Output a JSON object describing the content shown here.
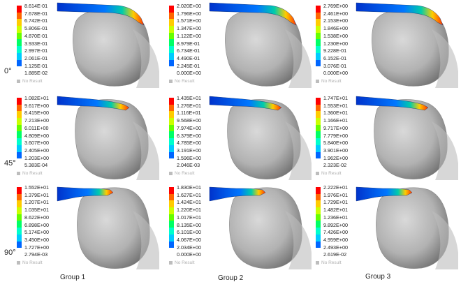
{
  "row_labels": [
    "0°",
    "45°",
    "90°"
  ],
  "group_labels": [
    "Group 1",
    "Group 2",
    "Group 3"
  ],
  "no_result_label": "No Result",
  "legend_colors": [
    "#ff0000",
    "#ff6600",
    "#ffcc00",
    "#ccff00",
    "#66ff00",
    "#00ff66",
    "#00ffcc",
    "#00ccff",
    "#0066ff",
    "#0000ff",
    "#0000aa"
  ],
  "panels": [
    {
      "row": 0,
      "group": 0,
      "values": [
        "8.614E-01",
        "7.678E-01",
        "6.742E-01",
        "5.806E-01",
        "4.870E-01",
        "3.933E-01",
        "2.997E-01",
        "2.061E-01",
        "1.125E-01",
        "1.885E-02"
      ]
    },
    {
      "row": 0,
      "group": 1,
      "values": [
        "2.020E+00",
        "1.796E+00",
        "1.571E+00",
        "1.347E+00",
        "1.122E+00",
        "8.979E-01",
        "6.734E-01",
        "4.490E-01",
        "2.245E-01",
        "0.000E+00"
      ]
    },
    {
      "row": 0,
      "group": 2,
      "values": [
        "2.769E+00",
        "2.461E+00",
        "2.153E+00",
        "1.846E+00",
        "1.538E+00",
        "1.230E+00",
        "9.228E-01",
        "6.152E-01",
        "3.076E-01",
        "0.000E+00"
      ]
    },
    {
      "row": 1,
      "group": 0,
      "values": [
        "1.082E+01",
        "9.617E+00",
        "8.415E+00",
        "7.213E+00",
        "6.011E+00",
        "4.809E+00",
        "3.607E+00",
        "2.405E+00",
        "1.203E+00",
        "5.383E-04"
      ]
    },
    {
      "row": 1,
      "group": 1,
      "values": [
        "1.435E+01",
        "1.276E+01",
        "1.116E+01",
        "9.568E+00",
        "7.974E+00",
        "6.379E+00",
        "4.785E+00",
        "3.191E+00",
        "1.596E+00",
        "2.046E-03"
      ]
    },
    {
      "row": 1,
      "group": 2,
      "values": [
        "1.747E+01",
        "1.553E+01",
        "1.360E+01",
        "1.166E+01",
        "9.717E+00",
        "7.779E+00",
        "5.840E+00",
        "3.901E+00",
        "1.962E+00",
        "2.323E-02"
      ]
    },
    {
      "row": 2,
      "group": 0,
      "values": [
        "1.552E+01",
        "1.379E+01",
        "1.207E+01",
        "1.035E+01",
        "8.622E+00",
        "6.898E+00",
        "5.174E+00",
        "3.450E+00",
        "1.727E+00",
        "2.794E-03"
      ]
    },
    {
      "row": 2,
      "group": 1,
      "values": [
        "1.830E+01",
        "1.627E+01",
        "1.424E+01",
        "1.220E+01",
        "1.017E+01",
        "8.135E+00",
        "6.101E+00",
        "4.067E+00",
        "2.034E+00",
        "0.000E+00"
      ]
    },
    {
      "row": 2,
      "group": 2,
      "values": [
        "2.222E+01",
        "1.976E+01",
        "1.729E+01",
        "1.482E+01",
        "1.236E+01",
        "9.892E+00",
        "7.426E+00",
        "4.959E+00",
        "2.493E+00",
        "2.619E-02"
      ]
    }
  ]
}
